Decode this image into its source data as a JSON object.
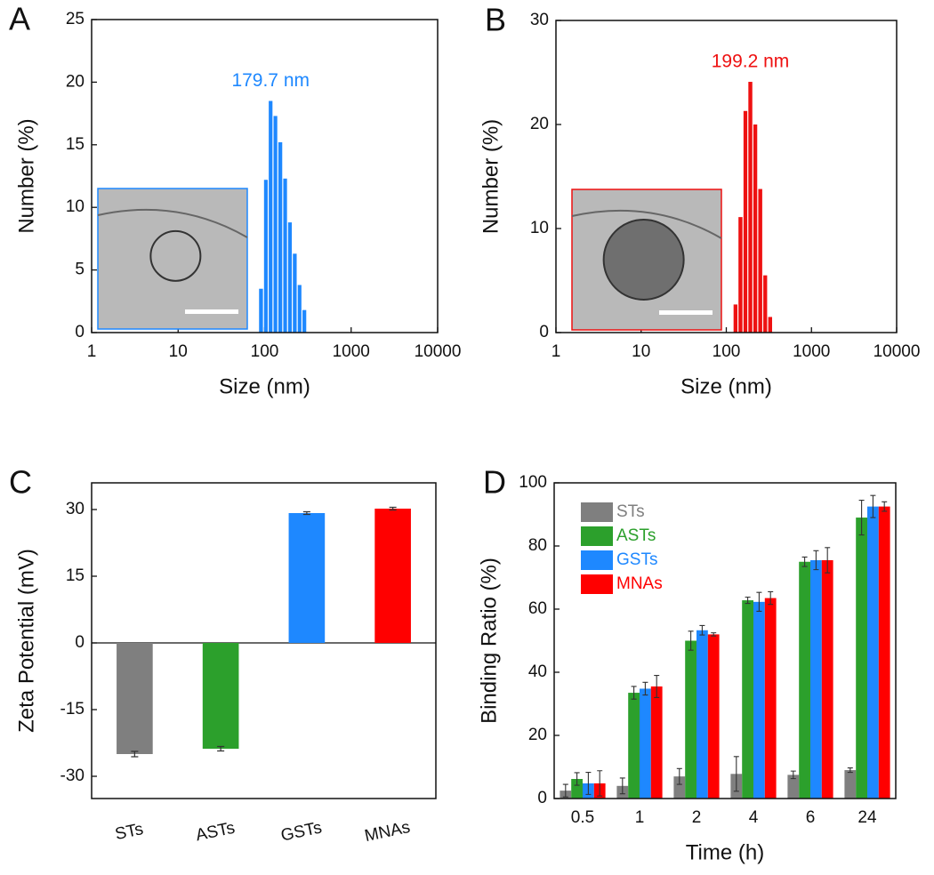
{
  "chart_data": [
    {
      "type": "histogram",
      "panel_label": "A",
      "xlabel": "Size (nm)",
      "ylabel": "Number (%)",
      "xscale": "log",
      "xlim": [
        1,
        10000
      ],
      "xticks": [
        1,
        10,
        100,
        1000,
        10000
      ],
      "ylim": [
        0,
        25
      ],
      "yticks": [
        0,
        5,
        10,
        15,
        20,
        25
      ],
      "color": "#1e88ff",
      "annotation": "179.7 nm",
      "bins": [
        85,
        97,
        110,
        125,
        142,
        162,
        184,
        209,
        238,
        270,
        307
      ],
      "values": [
        3.5,
        12.2,
        18.5,
        17.3,
        15.2,
        12.3,
        8.8,
        6.3,
        3.8,
        1.8
      ]
    },
    {
      "type": "histogram",
      "panel_label": "B",
      "xlabel": "Size (nm)",
      "ylabel": "Number (%)",
      "xscale": "log",
      "xlim": [
        1,
        10000
      ],
      "xticks": [
        1,
        10,
        100,
        1000,
        10000
      ],
      "ylim": [
        0,
        30
      ],
      "yticks": [
        0,
        10,
        20,
        30
      ],
      "color": "#ee1111",
      "annotation": "199.2 nm",
      "bins": [
        120,
        137,
        157,
        179,
        205,
        234,
        268,
        306,
        350
      ],
      "values": [
        2.7,
        11.1,
        21.3,
        24.1,
        20.0,
        13.8,
        5.5,
        1.5
      ]
    },
    {
      "type": "bar",
      "panel_label": "C",
      "ylabel": "Zeta Potential (mV)",
      "categories": [
        "STs",
        "ASTs",
        "GSTs",
        "MNAs"
      ],
      "values": [
        -25,
        -23.8,
        29.2,
        30.2
      ],
      "errors": [
        0.6,
        0.5,
        0.3,
        0.3
      ],
      "colors": [
        "#7f7f7f",
        "#2ca02c",
        "#1e88ff",
        "#ff0000"
      ],
      "ylim": [
        -35,
        36
      ],
      "yticks": [
        -30,
        -15,
        0,
        15,
        30
      ]
    },
    {
      "type": "grouped_bar",
      "panel_label": "D",
      "xlabel": "Time (h)",
      "ylabel": "Binding Ratio (%)",
      "categories": [
        "0.5",
        "1",
        "2",
        "4",
        "6",
        "24"
      ],
      "ylim": [
        0,
        100
      ],
      "yticks": [
        0,
        20,
        40,
        60,
        80,
        100
      ],
      "legend": "upper-left",
      "series": [
        {
          "name": "STs",
          "color": "#7f7f7f",
          "values": [
            2.5,
            4,
            7,
            7.8,
            7.5,
            9
          ],
          "errors": [
            2,
            2.5,
            2.5,
            5.5,
            1.2,
            0.7
          ]
        },
        {
          "name": "ASTs",
          "color": "#2ca02c",
          "values": [
            6.2,
            33.5,
            50,
            62.8,
            75,
            89
          ],
          "errors": [
            2,
            2,
            3,
            1,
            1.5,
            5.5
          ]
        },
        {
          "name": "GSTs",
          "color": "#1e88ff",
          "values": [
            4.8,
            34.8,
            53.3,
            62.3,
            75.5,
            92.5
          ],
          "errors": [
            3.5,
            2,
            1.5,
            3,
            3,
            3.5
          ]
        },
        {
          "name": "MNAs",
          "color": "#ff0000",
          "values": [
            4.8,
            35.5,
            52,
            63.5,
            75.5,
            92.5
          ],
          "errors": [
            4,
            3.5,
            0.5,
            2,
            4,
            1.5
          ]
        }
      ]
    }
  ]
}
